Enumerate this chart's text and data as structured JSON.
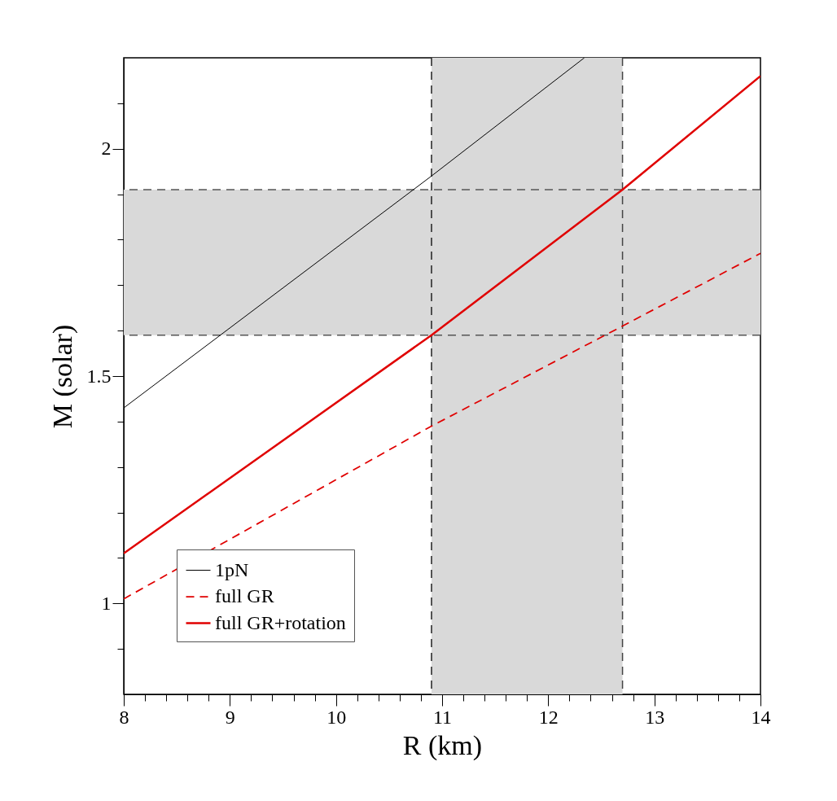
{
  "chart_data": {
    "type": "line",
    "xlabel": "R (km)",
    "ylabel": "M (solar)",
    "xlim": [
      8,
      14
    ],
    "ylim": [
      0.8,
      2.2
    ],
    "xticks": [
      8,
      {
        "value": 8.2,
        "label": null
      },
      {
        "value": 8.4,
        "label": null
      },
      {
        "value": 8.6,
        "label": null
      },
      {
        "value": 8.8,
        "label": null
      },
      9,
      {
        "value": 9.2,
        "label": null
      },
      {
        "value": 9.4,
        "label": null
      },
      {
        "value": 9.6,
        "label": null
      },
      {
        "value": 9.8,
        "label": null
      },
      10,
      {
        "value": 10.2,
        "label": null
      },
      {
        "value": 10.4,
        "label": null
      },
      {
        "value": 10.6,
        "label": null
      },
      {
        "value": 10.8,
        "label": null
      },
      11,
      {
        "value": 11.2,
        "label": null
      },
      {
        "value": 11.4,
        "label": null
      },
      {
        "value": 11.6,
        "label": null
      },
      {
        "value": 11.8,
        "label": null
      },
      12,
      {
        "value": 12.2,
        "label": null
      },
      {
        "value": 12.4,
        "label": null
      },
      {
        "value": 12.6,
        "label": null
      },
      {
        "value": 12.8,
        "label": null
      },
      13,
      {
        "value": 13.2,
        "label": null
      },
      {
        "value": 13.4,
        "label": null
      },
      {
        "value": 13.6,
        "label": null
      },
      {
        "value": 13.8,
        "label": null
      },
      14
    ],
    "yticks": [
      {
        "value": 0.9,
        "label": null
      },
      1,
      {
        "value": 1.1,
        "label": null
      },
      {
        "value": 1.2,
        "label": null
      },
      {
        "value": 1.3,
        "label": null
      },
      {
        "value": 1.4,
        "label": null
      },
      1.5,
      {
        "value": 1.6,
        "label": null
      },
      {
        "value": 1.7,
        "label": null
      },
      {
        "value": 1.8,
        "label": null
      },
      {
        "value": 1.9,
        "label": null
      },
      2,
      {
        "value": 2.1,
        "label": null
      }
    ],
    "legend": "bottom left",
    "series": [
      {
        "name": "1pN",
        "color": "#000000",
        "line_style": "solid",
        "x": [
          8,
          10.9,
          12.34
        ],
        "values": [
          1.43,
          1.94,
          2.2
        ]
      },
      {
        "name": "full GR",
        "color": "#e00000",
        "line_style": "dashed",
        "x": [
          8,
          10.9,
          12.7,
          14
        ],
        "values": [
          1.01,
          1.39,
          1.61,
          1.77
        ]
      },
      {
        "name": "full GR+rotation",
        "color": "#e00000",
        "line_style": "solid",
        "x": [
          8,
          10.9,
          12.7,
          14
        ],
        "values": [
          1.11,
          1.59,
          1.91,
          2.16
        ]
      }
    ],
    "bands": [
      {
        "axis": "x",
        "from": 10.9,
        "to": 12.7,
        "color": "#d9d9d9"
      },
      {
        "axis": "y",
        "from": 1.59,
        "to": 1.91,
        "color": "#d9d9d9"
      }
    ],
    "ref_lines": [
      {
        "axis": "x",
        "value": 10.9,
        "color": "#222222",
        "line_style": "dashed"
      },
      {
        "axis": "x",
        "value": 12.7,
        "color": "#444444",
        "line_style": "dashed"
      },
      {
        "axis": "y",
        "value": 1.59,
        "color": "#555555",
        "line_style": "dashed"
      },
      {
        "axis": "y",
        "value": 1.91,
        "color": "#555555",
        "line_style": "dashed"
      }
    ]
  }
}
